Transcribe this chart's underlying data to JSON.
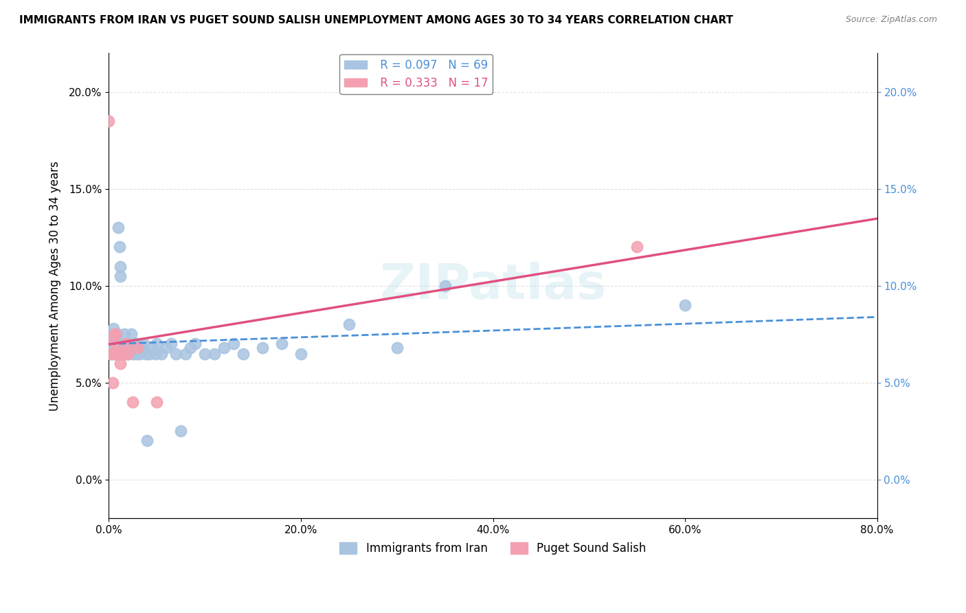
{
  "title": "IMMIGRANTS FROM IRAN VS PUGET SOUND SALISH UNEMPLOYMENT AMONG AGES 30 TO 34 YEARS CORRELATION CHART",
  "source": "Source: ZipAtlas.com",
  "ylabel": "Unemployment Among Ages 30 to 34 years",
  "xlabel_iran": "Immigrants from Iran",
  "xlabel_salish": "Puget Sound Salish",
  "xlim": [
    0.0,
    0.8
  ],
  "ylim": [
    -0.02,
    0.22
  ],
  "yticks": [
    0.0,
    0.05,
    0.1,
    0.15,
    0.2
  ],
  "ytick_labels": [
    "0.0%",
    "5.0%",
    "10.0%",
    "15.0%",
    "20.0%"
  ],
  "xticks": [
    0.0,
    0.2,
    0.4,
    0.6,
    0.8
  ],
  "xtick_labels": [
    "0.0%",
    "20.0%",
    "40.0%",
    "60.0%",
    "80.0%"
  ],
  "iran_R": 0.097,
  "iran_N": 69,
  "salish_R": 0.333,
  "salish_N": 17,
  "iran_color": "#a8c4e0",
  "salish_color": "#f4a0b0",
  "iran_line_color": "#4a90d9",
  "salish_line_color": "#e05080",
  "iran_x": [
    0.0,
    0.001,
    0.002,
    0.003,
    0.003,
    0.004,
    0.004,
    0.005,
    0.005,
    0.005,
    0.006,
    0.006,
    0.007,
    0.007,
    0.007,
    0.008,
    0.008,
    0.009,
    0.009,
    0.01,
    0.01,
    0.011,
    0.012,
    0.012,
    0.013,
    0.014,
    0.015,
    0.016,
    0.017,
    0.018,
    0.019,
    0.02,
    0.021,
    0.022,
    0.023,
    0.025,
    0.026,
    0.027,
    0.028,
    0.03,
    0.032,
    0.035,
    0.036,
    0.038,
    0.04,
    0.042,
    0.045,
    0.048,
    0.05,
    0.055,
    0.06,
    0.065,
    0.07,
    0.075,
    0.08,
    0.085,
    0.09,
    0.1,
    0.11,
    0.12,
    0.13,
    0.14,
    0.16,
    0.18,
    0.2,
    0.25,
    0.3,
    0.35,
    0.6
  ],
  "iran_y": [
    0.073,
    0.073,
    0.073,
    0.068,
    0.075,
    0.07,
    0.072,
    0.068,
    0.065,
    0.078,
    0.07,
    0.075,
    0.065,
    0.07,
    0.068,
    0.072,
    0.07,
    0.075,
    0.065,
    0.068,
    0.13,
    0.12,
    0.11,
    0.105,
    0.065,
    0.068,
    0.065,
    0.075,
    0.068,
    0.07,
    0.065,
    0.065,
    0.07,
    0.068,
    0.075,
    0.065,
    0.07,
    0.068,
    0.065,
    0.07,
    0.065,
    0.068,
    0.07,
    0.065,
    0.02,
    0.065,
    0.068,
    0.065,
    0.07,
    0.065,
    0.068,
    0.07,
    0.065,
    0.025,
    0.065,
    0.068,
    0.07,
    0.065,
    0.065,
    0.068,
    0.07,
    0.065,
    0.068,
    0.07,
    0.065,
    0.08,
    0.068,
    0.1,
    0.09
  ],
  "salish_x": [
    0.0,
    0.002,
    0.003,
    0.004,
    0.005,
    0.006,
    0.007,
    0.008,
    0.01,
    0.012,
    0.015,
    0.018,
    0.02,
    0.025,
    0.03,
    0.05,
    0.55
  ],
  "salish_y": [
    0.185,
    0.065,
    0.065,
    0.05,
    0.072,
    0.075,
    0.075,
    0.068,
    0.065,
    0.06,
    0.065,
    0.07,
    0.065,
    0.04,
    0.068,
    0.04,
    0.12
  ]
}
